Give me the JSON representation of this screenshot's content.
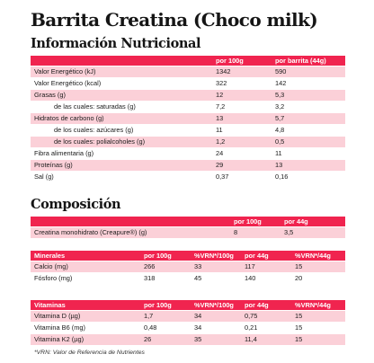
{
  "title": "Barrita Creatina (Choco milk)",
  "nutrition": {
    "heading": "Información Nutricional",
    "columns": [
      "",
      "por 100g",
      "por barrita (44g)"
    ],
    "rows": [
      {
        "label": "Valor Energético (kJ)",
        "per100": "1342",
        "perbar": "590",
        "indent": false,
        "shade": true
      },
      {
        "label": "Valor Energético (kcal)",
        "per100": "322",
        "perbar": "142",
        "indent": false,
        "shade": false
      },
      {
        "label": "Grasas (g)",
        "per100": "12",
        "perbar": "5,3",
        "indent": false,
        "shade": true
      },
      {
        "label": "de las cuales: saturadas (g)",
        "per100": "7,2",
        "perbar": "3,2",
        "indent": true,
        "shade": false
      },
      {
        "label": "Hidratos de carbono (g)",
        "per100": "13",
        "perbar": "5,7",
        "indent": false,
        "shade": true
      },
      {
        "label": "de los cuales: azúcares (g)",
        "per100": "11",
        "perbar": "4,8",
        "indent": true,
        "shade": false
      },
      {
        "label": "de los cuales: polialcoholes (g)",
        "per100": "1,2",
        "perbar": "0,5",
        "indent": true,
        "shade": true
      },
      {
        "label": "Fibra alimentaria (g)",
        "per100": "24",
        "perbar": "11",
        "indent": false,
        "shade": false
      },
      {
        "label": "Proteínas (g)",
        "per100": "29",
        "perbar": "13",
        "indent": false,
        "shade": true
      },
      {
        "label": "Sal (g)",
        "per100": "0,37",
        "perbar": "0,16",
        "indent": false,
        "shade": false
      }
    ]
  },
  "composition": {
    "heading": "Composición",
    "main": {
      "columns": [
        "",
        "por 100g",
        "por 44g"
      ],
      "rows": [
        {
          "label": "Creatina monohidrato (Creapure®) (g)",
          "per100": "8",
          "per44": "3,5"
        }
      ]
    },
    "minerals": {
      "columns": [
        "Minerales",
        "por 100g",
        "%VRN*/100g",
        "por 44g",
        "%VRN*/44g"
      ],
      "rows": [
        {
          "label": "Calcio (mg)",
          "per100": "266",
          "vrn100": "33",
          "per44": "117",
          "vrn44": "15"
        },
        {
          "label": "Fósforo (mg)",
          "per100": "318",
          "vrn100": "45",
          "per44": "140",
          "vrn44": "20"
        }
      ]
    },
    "vitamins": {
      "columns": [
        "Vitaminas",
        "por 100g",
        "%VRN*/100g",
        "por 44g",
        "%VRN*/44g"
      ],
      "rows": [
        {
          "label": "Vitamina D (µg)",
          "per100": "1,7",
          "vrn100": "34",
          "per44": "0,75",
          "vrn44": "15"
        },
        {
          "label": "Vitamina B6 (mg)",
          "per100": "0,48",
          "vrn100": "34",
          "per44": "0,21",
          "vrn44": "15"
        },
        {
          "label": "Vitamina K2 (µg)",
          "per100": "26",
          "vrn100": "35",
          "per44": "11,4",
          "vrn44": "15"
        }
      ]
    },
    "footnote": "*VRN: Valor de Referencia de Nutrientes"
  },
  "colors": {
    "accent": "#f0244f",
    "row_shade": "#fbd0d8"
  }
}
